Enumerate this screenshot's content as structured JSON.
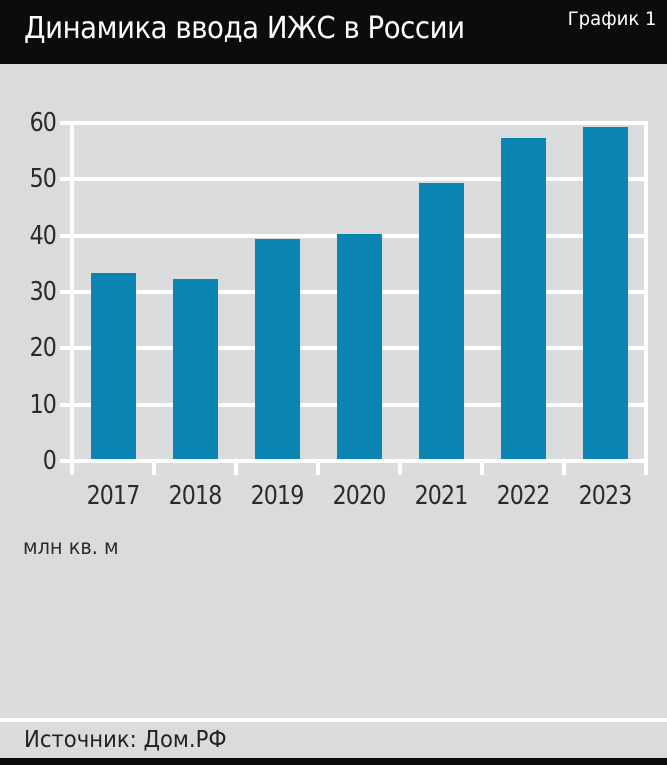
{
  "header": {
    "title": "Динамика ввода ИЖС в России",
    "tag": "График 1"
  },
  "chart_data": {
    "type": "bar",
    "categories": [
      "2017",
      "2018",
      "2019",
      "2020",
      "2021",
      "2022",
      "2023"
    ],
    "values": [
      33,
      32,
      39,
      40,
      49,
      57,
      59
    ],
    "title": "Динамика ввода ИЖС в России",
    "xlabel": "",
    "ylabel": "млн кв. м",
    "ylim": [
      0,
      60
    ],
    "ytick_step": 10,
    "grid": true,
    "legend": "none",
    "bar_color": "#0b86b3",
    "background": "#dadbdc",
    "gridline_color": "#ffffff",
    "label_color": "#2b2b2b"
  },
  "unit_label": "млн кв. м",
  "source": {
    "label": "Источник: Дом.РФ"
  }
}
